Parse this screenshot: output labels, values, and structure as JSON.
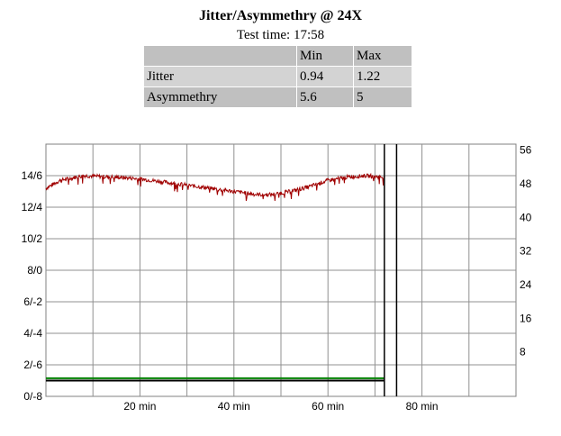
{
  "title": "Jitter/Asymmethry @ 24X",
  "subtitle": "Test time: 17:58",
  "table": {
    "headers": [
      "",
      "Min",
      "Max"
    ],
    "rows": [
      [
        "Jitter",
        "0.94",
        "1.22"
      ],
      [
        "Asymmethry",
        "5.6",
        "5"
      ]
    ]
  },
  "chart_data": {
    "type": "line",
    "xlim": [
      0,
      100
    ],
    "x_ticks": [
      {
        "v": 20,
        "label": "20 min"
      },
      {
        "v": 40,
        "label": "40 min"
      },
      {
        "v": 60,
        "label": "60 min"
      },
      {
        "v": 80,
        "label": "80 min"
      }
    ],
    "ylim_left": [
      0,
      16
    ],
    "y_left_ticks": [
      {
        "v": 0,
        "label": "0/-8"
      },
      {
        "v": 2,
        "label": "2/-6"
      },
      {
        "v": 4,
        "label": "4/-4"
      },
      {
        "v": 6,
        "label": "6/-2"
      },
      {
        "v": 8,
        "label": "8/0"
      },
      {
        "v": 10,
        "label": "10/2"
      },
      {
        "v": 12,
        "label": "12/4"
      },
      {
        "v": 14,
        "label": "14/6"
      }
    ],
    "ylim_right": [
      0,
      60
    ],
    "y_right_ticks": [
      8,
      16,
      24,
      32,
      40,
      48,
      56
    ],
    "grid": true,
    "series": [
      {
        "color": "#a00000",
        "x": [
          0,
          3,
          8,
          15,
          20,
          25,
          30,
          35,
          40,
          45,
          48,
          52,
          56,
          60,
          64,
          68,
          72
        ],
        "y": [
          13.2,
          13.7,
          14.0,
          13.9,
          13.8,
          13.6,
          13.4,
          13.2,
          13.0,
          12.8,
          12.8,
          13.0,
          13.3,
          13.7,
          13.9,
          14.0,
          13.9
        ]
      },
      {
        "color": "#008000",
        "x": [
          0,
          72
        ],
        "y": [
          1.15,
          1.15
        ]
      },
      {
        "color": "#000000",
        "x": [
          0,
          72
        ],
        "y": [
          1.0,
          1.0
        ]
      }
    ],
    "markers": [
      {
        "x": 72,
        "color": "#000000"
      },
      {
        "x": 74.6,
        "color": "#000000"
      }
    ]
  }
}
